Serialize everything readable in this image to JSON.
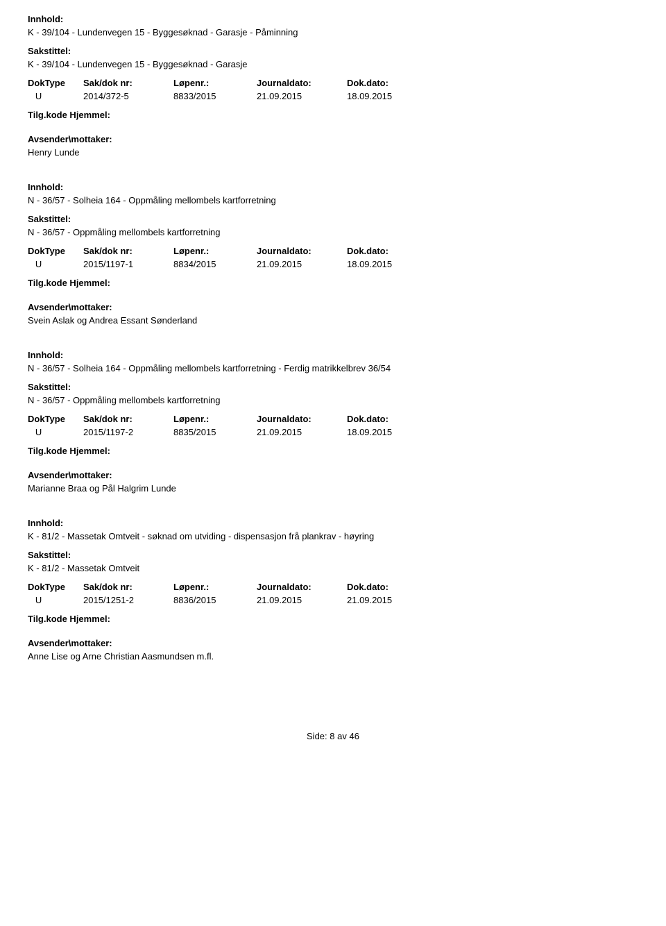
{
  "labels": {
    "innhold": "Innhold:",
    "sakstittel": "Sakstittel:",
    "doktype": "DokType",
    "sakdok": "Sak/dok nr:",
    "lopenr": "Løpenr.:",
    "journaldato": "Journaldato:",
    "dokdato": "Dok.dato:",
    "tilgkode": "Tilg.kode",
    "hjemmel": "Hjemmel:",
    "avsender": "Avsender\\mottaker:"
  },
  "records": [
    {
      "innhold": "K - 39/104 - Lundenvegen 15 - Byggesøknad - Garasje - Påminning",
      "sakstittel": "K - 39/104 - Lundenvegen 15 - Byggesøknad - Garasje",
      "doktype": "U",
      "sakdok": "2014/372-5",
      "lopenr": "8833/2015",
      "journaldato": "21.09.2015",
      "dokdato": "18.09.2015",
      "avsender": "Henry Lunde"
    },
    {
      "innhold": "N - 36/57 - Solheia 164 - Oppmåling mellombels kartforretning",
      "sakstittel": "N - 36/57 - Oppmåling mellombels kartforretning",
      "doktype": "U",
      "sakdok": "2015/1197-1",
      "lopenr": "8834/2015",
      "journaldato": "21.09.2015",
      "dokdato": "18.09.2015",
      "avsender": "Svein Aslak og Andrea Essant Sønderland"
    },
    {
      "innhold": "N - 36/57 - Solheia 164 - Oppmåling mellombels kartforretning - Ferdig matrikkelbrev 36/54",
      "sakstittel": "N - 36/57 - Oppmåling mellombels kartforretning",
      "doktype": "U",
      "sakdok": "2015/1197-2",
      "lopenr": "8835/2015",
      "journaldato": "21.09.2015",
      "dokdato": "18.09.2015",
      "avsender": "Marianne Braa og Pål Halgrim Lunde"
    },
    {
      "innhold": "K - 81/2 - Massetak Omtveit - søknad om utviding - dispensasjon frå plankrav - høyring",
      "sakstittel": "K - 81/2 - Massetak Omtveit",
      "doktype": "U",
      "sakdok": "2015/1251-2",
      "lopenr": "8836/2015",
      "journaldato": "21.09.2015",
      "dokdato": "21.09.2015",
      "avsender": "Anne Lise og Arne Christian Aasmundsen m.fl."
    }
  ],
  "footer": {
    "text": "Side:",
    "page": "8",
    "of": "av",
    "total": "46"
  }
}
